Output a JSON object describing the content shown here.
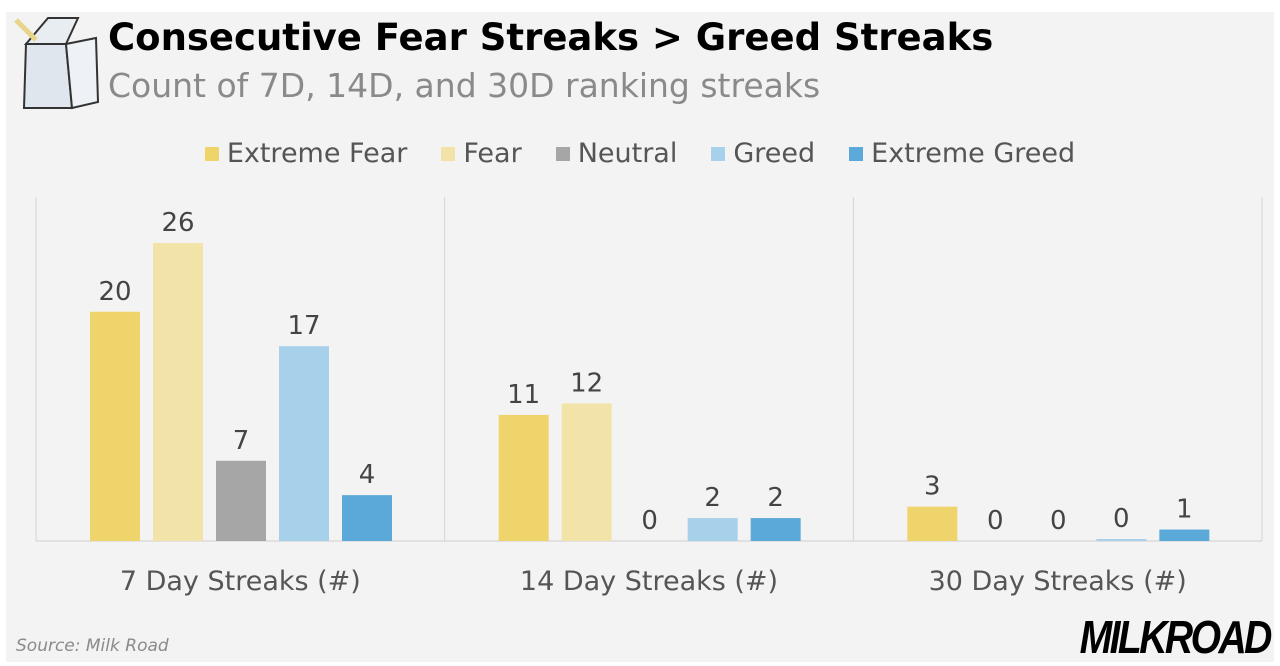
{
  "header": {
    "title": "Consecutive Fear Streaks > Greed Streaks",
    "subtitle": "Count of 7D, 14D, and 30D ranking streaks"
  },
  "footer": {
    "source": "Source: Milk Road",
    "brand": "MILKROAD"
  },
  "chart_data": {
    "type": "bar",
    "title": "Consecutive Fear Streaks > Greed Streaks",
    "subtitle": "Count of 7D, 14D, and 30D ranking streaks",
    "categories": [
      "7 Day Streaks (#)",
      "14 Day Streaks (#)",
      "30 Day Streaks (#)"
    ],
    "series": [
      {
        "name": "Extreme Fear",
        "color": "#eed46a",
        "values": [
          20,
          11,
          3
        ]
      },
      {
        "name": "Fear",
        "color": "#f2e4a8",
        "values": [
          26,
          12,
          0
        ]
      },
      {
        "name": "Neutral",
        "color": "#a6a6a6",
        "values": [
          7,
          0,
          0
        ]
      },
      {
        "name": "Greed",
        "color": "#a7d0ea",
        "values": [
          17,
          2,
          0
        ]
      },
      {
        "name": "Extreme Greed",
        "color": "#5ba9d8",
        "values": [
          4,
          2,
          1
        ]
      }
    ],
    "ylim": [
      0,
      30
    ],
    "grid": false,
    "legend": "top",
    "data_labels": true
  }
}
